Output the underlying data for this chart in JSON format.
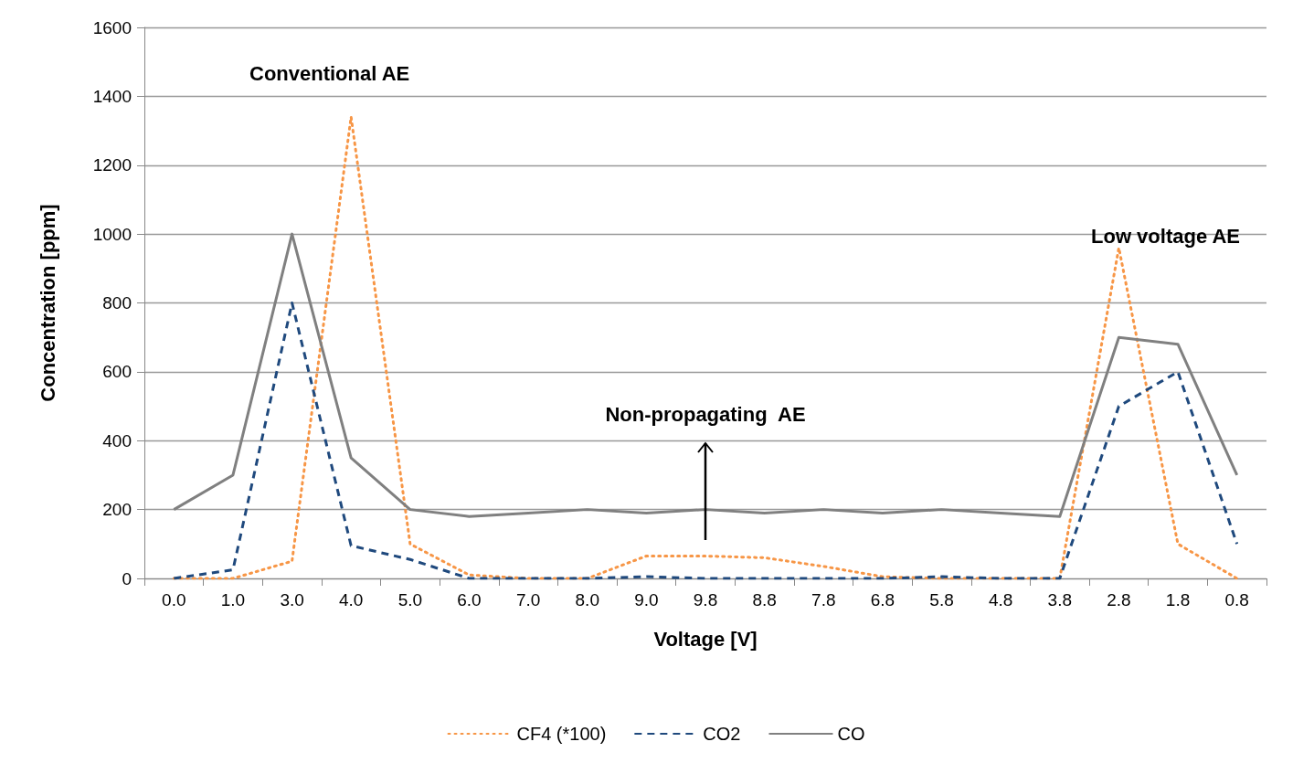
{
  "chart_data": {
    "type": "line",
    "xlabel": "Voltage [V]",
    "ylabel": "Concentration [ppm]",
    "categories": [
      "0.0",
      "1.0",
      "3.0",
      "4.0",
      "5.0",
      "6.0",
      "7.0",
      "8.0",
      "9.0",
      "9.8",
      "8.8",
      "7.8",
      "6.8",
      "5.8",
      "4.8",
      "3.8",
      "2.8",
      "1.8",
      "0.8"
    ],
    "series": [
      {
        "name": "CF4 (*100)",
        "color": "#f79646",
        "line_style": "dotted",
        "values": [
          0,
          0,
          50,
          1340,
          100,
          10,
          0,
          0,
          65,
          65,
          60,
          35,
          5,
          0,
          0,
          0,
          960,
          100,
          0
        ]
      },
      {
        "name": "CO2",
        "color": "#1f497d",
        "line_style": "dashed",
        "values": [
          0,
          25,
          800,
          95,
          55,
          0,
          0,
          0,
          5,
          0,
          0,
          0,
          0,
          5,
          0,
          0,
          500,
          600,
          100
        ]
      },
      {
        "name": "CO",
        "color": "#808080",
        "line_style": "solid",
        "values": [
          200,
          300,
          1000,
          350,
          200,
          180,
          190,
          200,
          190,
          200,
          190,
          200,
          190,
          200,
          190,
          180,
          700,
          680,
          300
        ]
      }
    ],
    "ylim": [
      0,
      1600
    ],
    "yticks": [
      0,
      200,
      400,
      600,
      800,
      1000,
      1200,
      1400,
      1600
    ],
    "grid": "y",
    "legend": "bottom",
    "marker": "none",
    "annotations": [
      "Conventional AE",
      {
        "text": "Non-propagating  AE",
        "x": "9.8"
      },
      "Low voltage AE"
    ]
  }
}
